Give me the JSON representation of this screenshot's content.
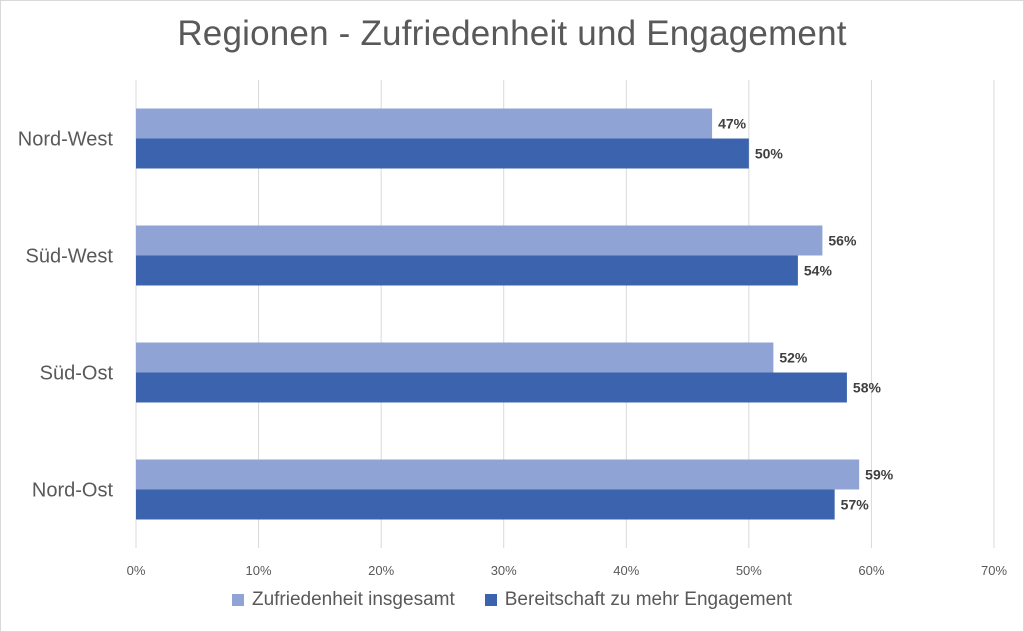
{
  "chart_data": {
    "type": "bar",
    "orientation": "horizontal",
    "title": "Regionen - Zufriedenheit und Engagement",
    "categories": [
      "Nord-West",
      "Süd-West",
      "Süd-Ost",
      "Nord-Ost"
    ],
    "series": [
      {
        "name": "Zufriedenheit insgesamt",
        "values": [
          47,
          56,
          52,
          59
        ],
        "labels": [
          "47%",
          "56%",
          "52%",
          "59%"
        ],
        "color": "#8fa3d4"
      },
      {
        "name": "Bereitschaft zu mehr Engagement",
        "values": [
          50,
          54,
          58,
          57
        ],
        "labels": [
          "50%",
          "54%",
          "58%",
          "57%"
        ],
        "color": "#3c64ae"
      }
    ],
    "xlim": [
      0,
      70
    ],
    "xticks": [
      0,
      10,
      20,
      30,
      40,
      50,
      60,
      70
    ],
    "xtick_labels": [
      "0%",
      "10%",
      "20%",
      "30%",
      "40%",
      "50%",
      "60%",
      "70%"
    ],
    "grid": true,
    "legend_position": "bottom",
    "gridline_color": "#d9d9d9",
    "text_color": "#595959",
    "label_color": "#404040"
  }
}
